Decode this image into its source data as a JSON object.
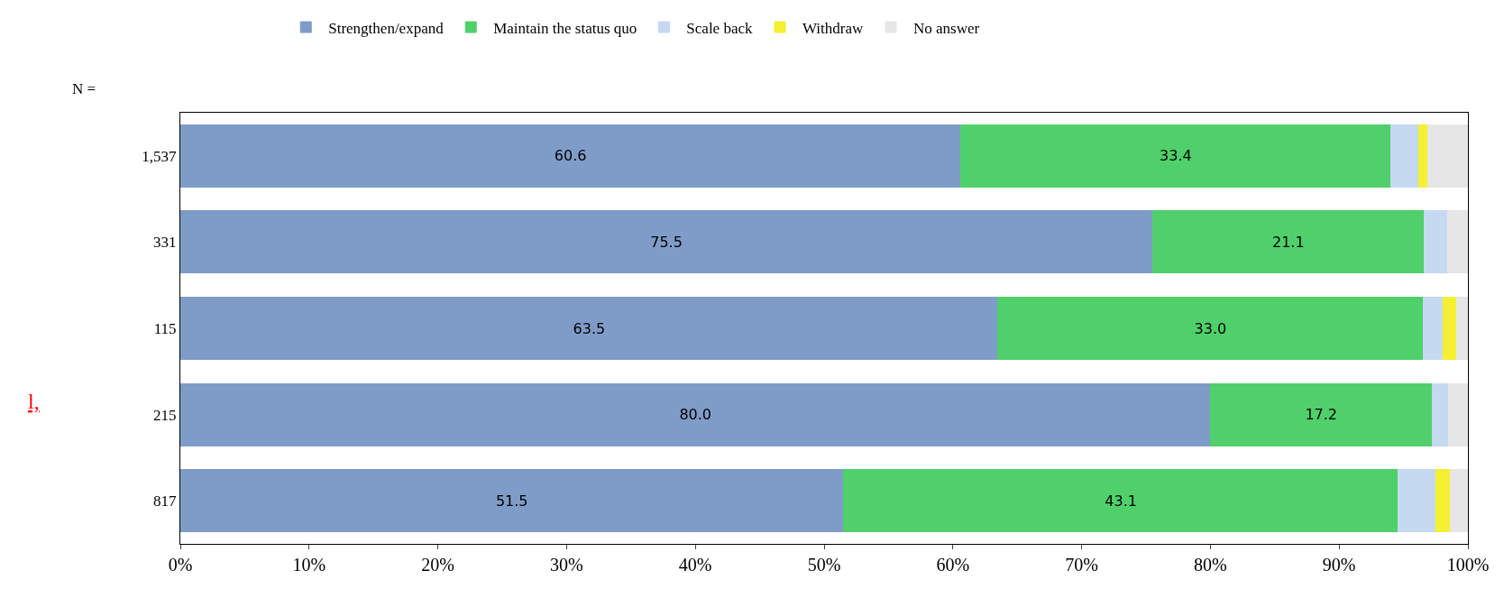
{
  "chart_data": {
    "type": "bar",
    "orientation": "horizontal",
    "stacked": true,
    "ylabel": "N =",
    "categories": [
      "1,537",
      "331",
      "115",
      "215",
      "817"
    ],
    "series": [
      {
        "name": "Strengthen/expand",
        "color": "#7f9cc8",
        "values": [
          60.6,
          75.5,
          63.5,
          80.0,
          51.5
        ],
        "value_labels": [
          "60.6",
          "75.5",
          "63.5",
          "80.0",
          "51.5"
        ]
      },
      {
        "name": "Maintain the status quo",
        "color": "#4fd06a",
        "values": [
          33.4,
          21.1,
          33.0,
          17.2,
          43.1
        ],
        "value_labels": [
          "33.4",
          "21.1",
          "33.0",
          "17.2",
          "43.1"
        ]
      },
      {
        "name": "Scale back",
        "color": "#c5d9f1",
        "values": [
          2.2,
          1.8,
          1.6,
          1.3,
          2.9
        ]
      },
      {
        "name": "Withdraw",
        "color": "#f5f032",
        "values": [
          0.7,
          0,
          1.0,
          0,
          1.1
        ]
      },
      {
        "name": "No answer",
        "color": "#e6e6e6",
        "values": [
          3.1,
          1.6,
          0.9,
          1.5,
          1.4
        ]
      }
    ],
    "xlim": [
      0,
      100
    ],
    "xticks": [
      {
        "value": 0,
        "label": "0%"
      },
      {
        "value": 10,
        "label": "10%"
      },
      {
        "value": 20,
        "label": "20%"
      },
      {
        "value": 30,
        "label": "30%"
      },
      {
        "value": 40,
        "label": "40%"
      },
      {
        "value": 50,
        "label": "50%"
      },
      {
        "value": 60,
        "label": "60%"
      },
      {
        "value": 70,
        "label": "70%"
      },
      {
        "value": 80,
        "label": "80%"
      },
      {
        "value": 90,
        "label": "90%"
      },
      {
        "value": 100,
        "label": "100%"
      }
    ],
    "legend": "top",
    "annotations": [
      "l,"
    ]
  }
}
